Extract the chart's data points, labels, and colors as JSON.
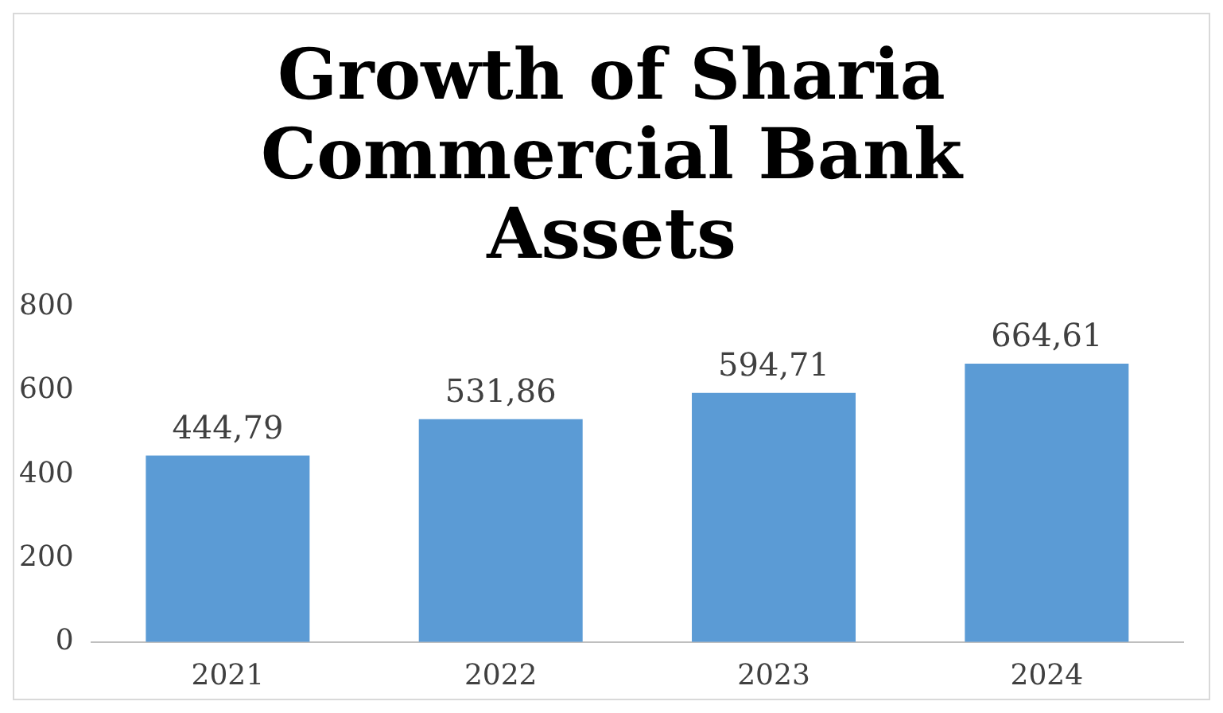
{
  "chart_data": {
    "type": "bar",
    "title": "Growth of Sharia Commercial Bank Assets",
    "categories": [
      "2021",
      "2022",
      "2023",
      "2024"
    ],
    "values": [
      444.79,
      531.86,
      594.71,
      664.61
    ],
    "value_labels": [
      "444,79",
      "531,86",
      "594,71",
      "664,61"
    ],
    "color": "#5b9bd5",
    "ylim": [
      0,
      800
    ],
    "yticks": [
      0,
      200,
      400,
      600,
      800
    ],
    "grid": false,
    "legend": false
  }
}
